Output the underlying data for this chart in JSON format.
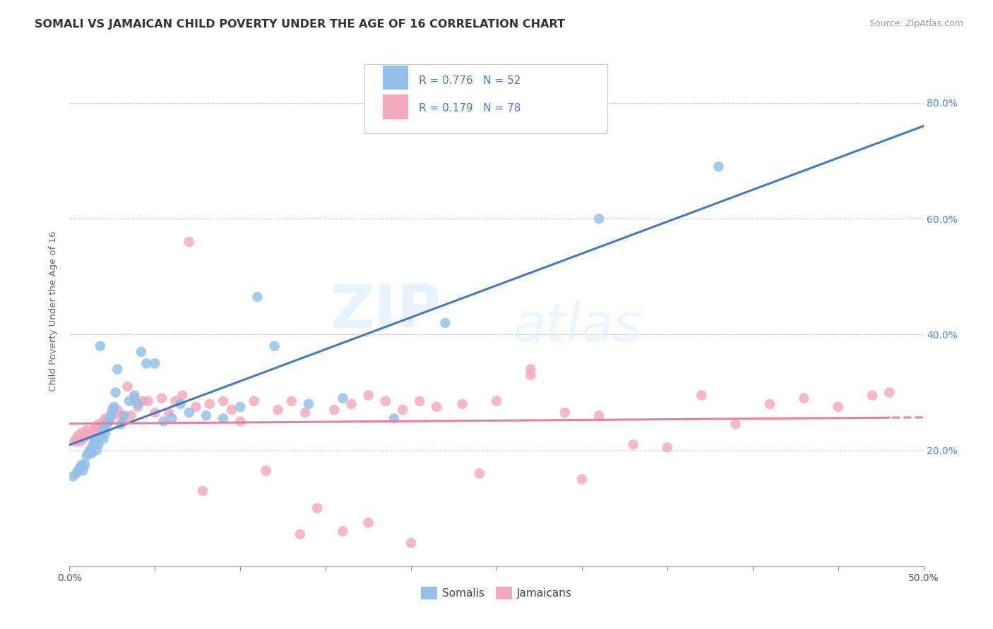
{
  "title": "SOMALI VS JAMAICAN CHILD POVERTY UNDER THE AGE OF 16 CORRELATION CHART",
  "source": "Source: ZipAtlas.com",
  "ylabel": "Child Poverty Under the Age of 16",
  "xlim": [
    0.0,
    0.5
  ],
  "ylim": [
    0.0,
    0.88
  ],
  "xticks": [
    0.0,
    0.05,
    0.1,
    0.15,
    0.2,
    0.25,
    0.3,
    0.35,
    0.4,
    0.45,
    0.5
  ],
  "xticklabels_show": [
    "0.0%",
    "",
    "",
    "",
    "",
    "",
    "",
    "",
    "",
    "",
    "50.0%"
  ],
  "yticks_right": [
    0.2,
    0.4,
    0.6,
    0.8
  ],
  "ytick_labels_right": [
    "20.0%",
    "40.0%",
    "60.0%",
    "80.0%"
  ],
  "grid_color": "#cccccc",
  "background_color": "#ffffff",
  "somali_color": "#92C0E8",
  "jamaican_color": "#F4A8BC",
  "somali_line_color": "#4478C4",
  "jamaican_line_color": "#E8809A",
  "legend_label_somali": "Somalis",
  "legend_label_jamaican": "Jamaicans",
  "somali_x": [
    0.002,
    0.004,
    0.005,
    0.006,
    0.007,
    0.008,
    0.009,
    0.01,
    0.011,
    0.012,
    0.013,
    0.013,
    0.014,
    0.015,
    0.015,
    0.016,
    0.017,
    0.018,
    0.019,
    0.02,
    0.02,
    0.021,
    0.022,
    0.023,
    0.024,
    0.025,
    0.026,
    0.027,
    0.028,
    0.03,
    0.032,
    0.035,
    0.038,
    0.04,
    0.042,
    0.045,
    0.05,
    0.055,
    0.06,
    0.065,
    0.07,
    0.08,
    0.09,
    0.1,
    0.11,
    0.12,
    0.14,
    0.16,
    0.19,
    0.22,
    0.31,
    0.38
  ],
  "somali_y": [
    0.155,
    0.16,
    0.165,
    0.17,
    0.175,
    0.165,
    0.175,
    0.19,
    0.195,
    0.2,
    0.205,
    0.195,
    0.21,
    0.215,
    0.22,
    0.2,
    0.21,
    0.38,
    0.225,
    0.24,
    0.22,
    0.23,
    0.245,
    0.25,
    0.26,
    0.27,
    0.275,
    0.3,
    0.34,
    0.245,
    0.26,
    0.285,
    0.295,
    0.28,
    0.37,
    0.35,
    0.35,
    0.25,
    0.255,
    0.28,
    0.265,
    0.26,
    0.255,
    0.275,
    0.465,
    0.38,
    0.28,
    0.29,
    0.255,
    0.42,
    0.6,
    0.69
  ],
  "jamaican_x": [
    0.003,
    0.004,
    0.005,
    0.006,
    0.007,
    0.008,
    0.009,
    0.01,
    0.011,
    0.012,
    0.013,
    0.014,
    0.015,
    0.016,
    0.017,
    0.018,
    0.019,
    0.02,
    0.021,
    0.022,
    0.024,
    0.025,
    0.027,
    0.028,
    0.03,
    0.032,
    0.034,
    0.036,
    0.038,
    0.04,
    0.043,
    0.046,
    0.05,
    0.054,
    0.058,
    0.062,
    0.066,
    0.07,
    0.074,
    0.078,
    0.082,
    0.09,
    0.095,
    0.1,
    0.108,
    0.115,
    0.122,
    0.13,
    0.138,
    0.145,
    0.155,
    0.165,
    0.175,
    0.185,
    0.195,
    0.205,
    0.215,
    0.23,
    0.25,
    0.27,
    0.29,
    0.31,
    0.33,
    0.35,
    0.37,
    0.39,
    0.41,
    0.43,
    0.45,
    0.47,
    0.135,
    0.16,
    0.2,
    0.24,
    0.175,
    0.27,
    0.3,
    0.48
  ],
  "jamaican_y": [
    0.215,
    0.22,
    0.225,
    0.215,
    0.23,
    0.22,
    0.225,
    0.235,
    0.23,
    0.225,
    0.23,
    0.235,
    0.24,
    0.235,
    0.245,
    0.24,
    0.245,
    0.25,
    0.255,
    0.25,
    0.255,
    0.26,
    0.265,
    0.27,
    0.26,
    0.25,
    0.31,
    0.26,
    0.29,
    0.275,
    0.285,
    0.285,
    0.265,
    0.29,
    0.265,
    0.285,
    0.295,
    0.56,
    0.275,
    0.13,
    0.28,
    0.285,
    0.27,
    0.25,
    0.285,
    0.165,
    0.27,
    0.285,
    0.265,
    0.1,
    0.27,
    0.28,
    0.295,
    0.285,
    0.27,
    0.285,
    0.275,
    0.28,
    0.285,
    0.34,
    0.265,
    0.26,
    0.21,
    0.205,
    0.295,
    0.245,
    0.28,
    0.29,
    0.275,
    0.295,
    0.055,
    0.06,
    0.04,
    0.16,
    0.075,
    0.33,
    0.15,
    0.3
  ],
  "watermark_line1": "ZIP",
  "watermark_line2": "atlas",
  "title_fontsize": 11.5,
  "axis_label_fontsize": 9.5,
  "tick_fontsize": 10,
  "legend_fontsize": 11,
  "source_fontsize": 9
}
